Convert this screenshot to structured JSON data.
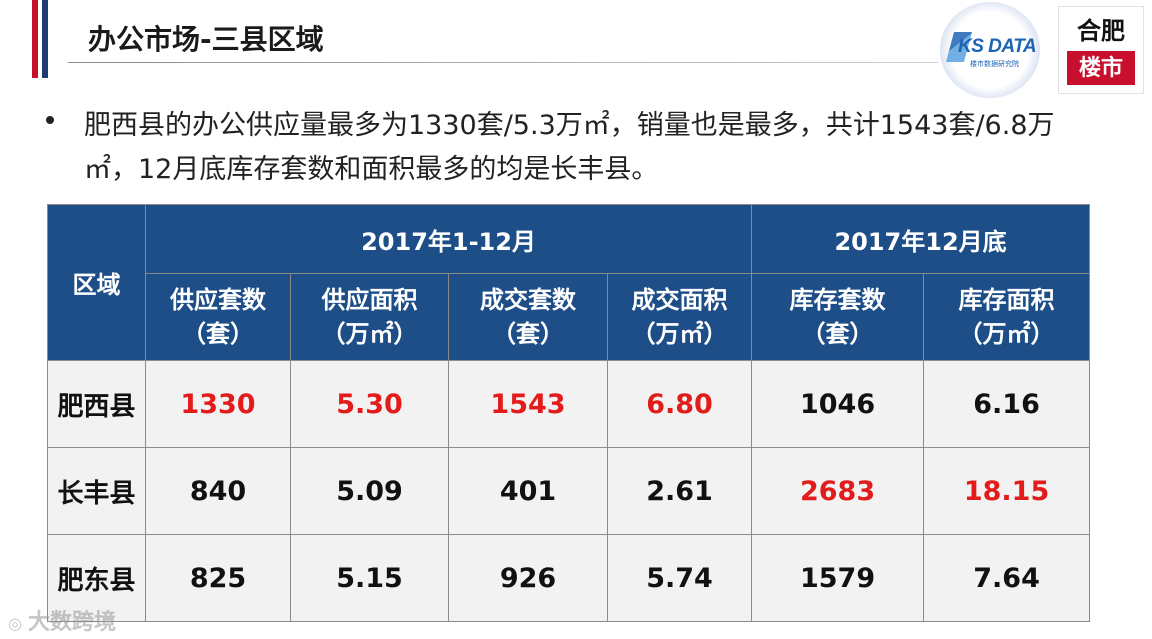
{
  "header": {
    "title": "办公市场-三县区域"
  },
  "logos": {
    "kdata": {
      "name": "KS DATA",
      "subtitle": "楼市数据研究院"
    },
    "heifei": {
      "top": "合肥",
      "bottom": "楼市"
    }
  },
  "bullet": {
    "text": "肥西县的办公供应量最多为1330套/5.3万㎡，销量也是最多，共计1543套/6.8万㎡，12月底库存套数和面积最多的均是长丰县。"
  },
  "table": {
    "region_header": "区域",
    "period_headers": [
      "2017年1-12月",
      "2017年12月底"
    ],
    "columns": [
      {
        "line1": "供应套数",
        "line2": "（套）"
      },
      {
        "line1": "供应面积",
        "line2": "（万㎡）"
      },
      {
        "line1": "成交套数",
        "line2": "（套）"
      },
      {
        "line1": "成交面积",
        "line2": "（万㎡）"
      },
      {
        "line1": "库存套数",
        "line2": "（套）"
      },
      {
        "line1": "库存面积",
        "line2": "（万㎡）"
      }
    ],
    "rows": [
      {
        "region": "肥西县",
        "values": [
          "1330",
          "5.30",
          "1543",
          "6.80",
          "1046",
          "6.16"
        ]
      },
      {
        "region": "长丰县",
        "values": [
          "840",
          "5.09",
          "401",
          "2.61",
          "2683",
          "18.15"
        ]
      },
      {
        "region": "肥东县",
        "values": [
          "825",
          "5.15",
          "926",
          "5.74",
          "1579",
          "7.64"
        ]
      }
    ],
    "highlight_color": "#e21b1b",
    "header_color": "#1e4e87"
  },
  "watermark": {
    "text": "大数跨境"
  }
}
